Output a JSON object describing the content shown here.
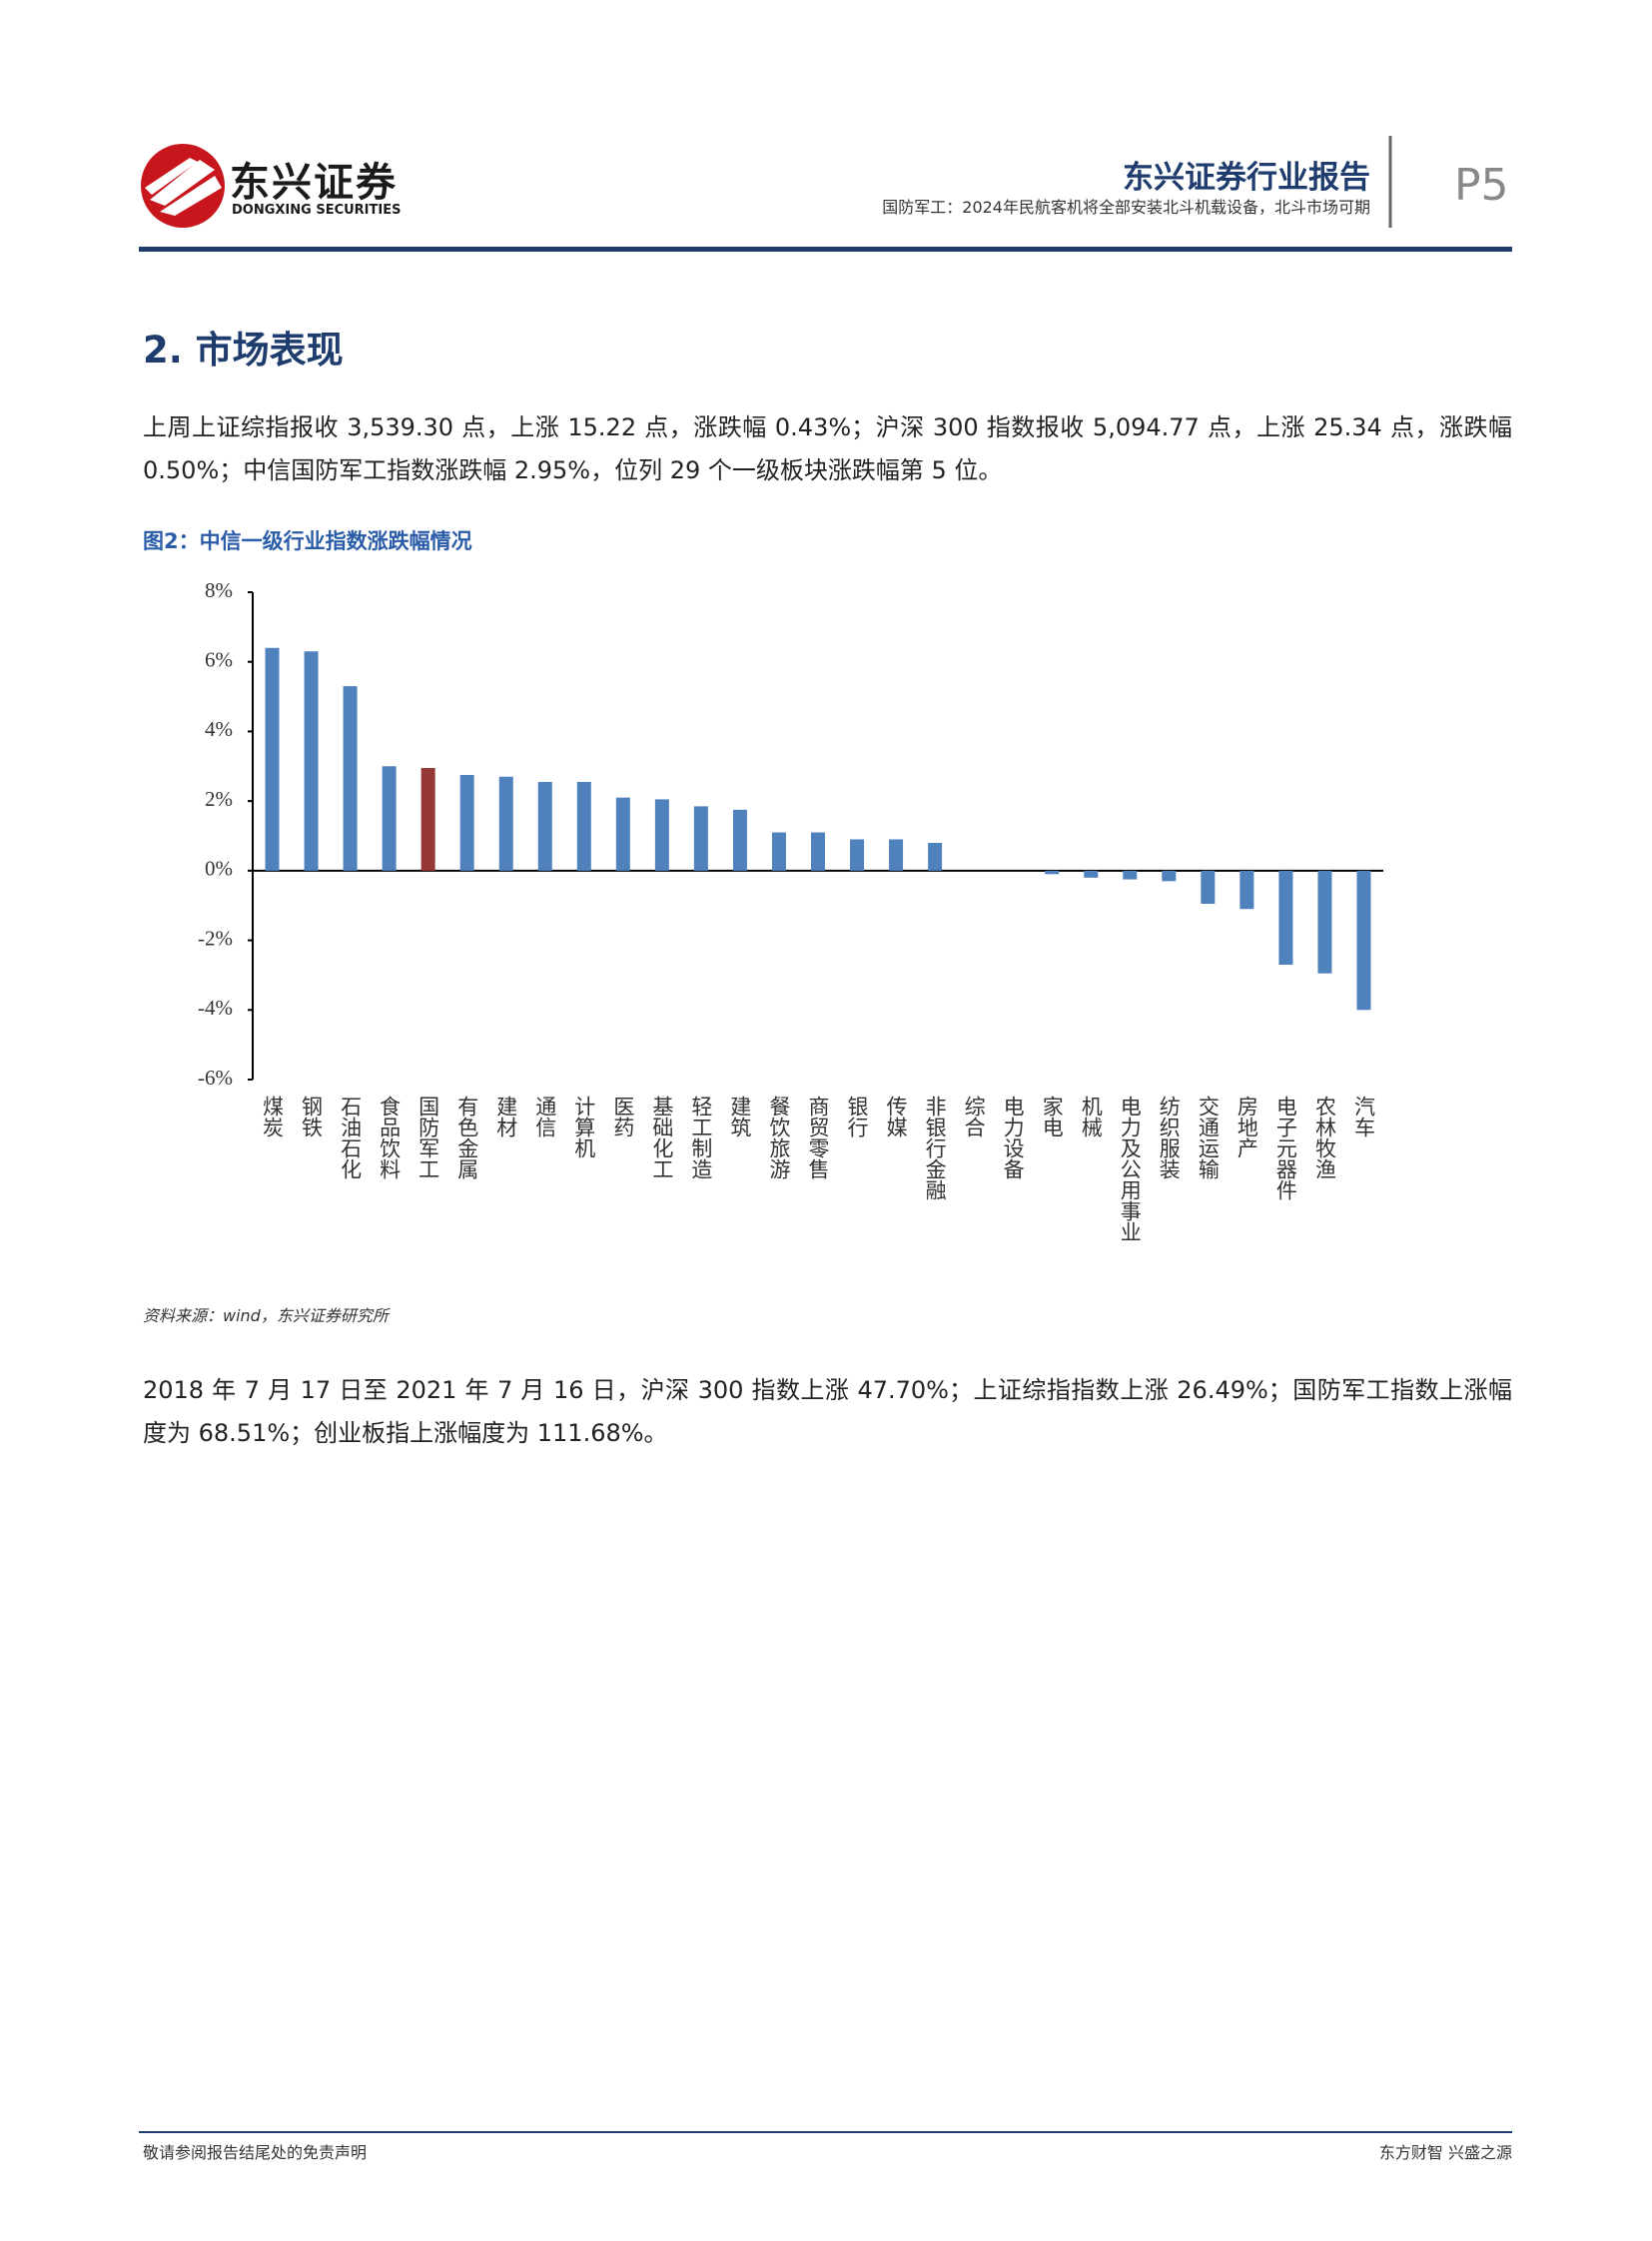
{
  "header": {
    "logo_name": "东兴证券",
    "logo_subname": "DONGXING SECURITIES",
    "report_type": "东兴证券行业报告",
    "subtitle": "国防军工：2024年民航客机将全部安装北斗机载设备，北斗市场可期",
    "page": "P5"
  },
  "section": {
    "heading": "2. 市场表现",
    "paragraph1": "上周上证综指报收 3,539.30 点，上涨 15.22 点，涨跌幅 0.43%；沪深 300 指数报收 5,094.77 点，上涨 25.34 点，涨跌幅 0.50%；中信国防军工指数涨跌幅 2.95%，位列 29 个一级板块涨跌幅第 5 位。",
    "figure_caption": "图2：中信一级行业指数涨跌幅情况",
    "source": "资料来源：wind，东兴证券研究所",
    "paragraph2": "2018 年 7 月 17 日至 2021 年 7 月 16 日，沪深 300 指数上涨 47.70%；上证综指指数上涨 26.49%；国防军工指数上涨幅度为 68.51%；创业板指上涨幅度为 111.68%。"
  },
  "chart_data": {
    "type": "bar",
    "categories": [
      "煤炭",
      "钢铁",
      "石油石化",
      "食品饮料",
      "国防军工",
      "有色金属",
      "建材",
      "通信",
      "计算机",
      "医药",
      "基础化工",
      "轻工制造",
      "建筑",
      "餐饮旅游",
      "商贸零售",
      "银行",
      "传媒",
      "非银行金融",
      "综合",
      "电力设备",
      "家电",
      "机械",
      "电力及公用事业",
      "纺织服装",
      "交通运输",
      "房地产",
      "电子元器件",
      "农林牧渔",
      "汽车"
    ],
    "values": [
      6.4,
      6.3,
      5.3,
      3.0,
      2.95,
      2.75,
      2.7,
      2.55,
      2.55,
      2.1,
      2.05,
      1.85,
      1.75,
      1.1,
      1.1,
      0.9,
      0.9,
      0.8,
      0,
      0,
      -0.1,
      -0.2,
      -0.25,
      -0.3,
      -0.95,
      -1.1,
      -2.7,
      -2.95,
      -4.0
    ],
    "colors": [
      "#4f81bd",
      "#4f81bd",
      "#4f81bd",
      "#4f81bd",
      "#953735",
      "#4f81bd",
      "#4f81bd",
      "#4f81bd",
      "#4f81bd",
      "#4f81bd",
      "#4f81bd",
      "#4f81bd",
      "#4f81bd",
      "#4f81bd",
      "#4f81bd",
      "#4f81bd",
      "#4f81bd",
      "#4f81bd",
      "#4f81bd",
      "#4f81bd",
      "#4f81bd",
      "#4f81bd",
      "#4f81bd",
      "#4f81bd",
      "#4f81bd",
      "#4f81bd",
      "#4f81bd",
      "#4f81bd",
      "#4f81bd"
    ],
    "ylim": [
      -6,
      8
    ],
    "yticks": [
      {
        "value": -6,
        "label": "-6%"
      },
      {
        "value": -4,
        "label": "-4%"
      },
      {
        "value": -2,
        "label": "-2%"
      },
      {
        "value": 0,
        "label": "0%"
      },
      {
        "value": 2,
        "label": "2%"
      },
      {
        "value": 4,
        "label": "4%"
      },
      {
        "value": 6,
        "label": "6%"
      },
      {
        "value": 8,
        "label": "8%"
      }
    ],
    "grid": false
  },
  "footer": {
    "left": "敬请参阅报告结尾处的免责声明",
    "right": "东方财智 兴盛之源"
  }
}
